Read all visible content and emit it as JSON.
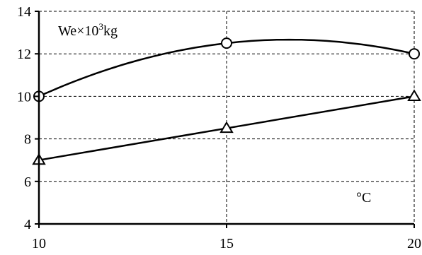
{
  "chart_data": {
    "type": "line",
    "x": [
      10,
      15,
      20
    ],
    "xlim": [
      10,
      20
    ],
    "ylim": [
      4,
      14
    ],
    "xticks": [
      "10",
      "15",
      "20"
    ],
    "yticks": [
      "4",
      "6",
      "8",
      "10",
      "12",
      "14"
    ],
    "grid": true,
    "annotations": {
      "ylabel_text": "We×10",
      "ylabel_sup": "3",
      "ylabel_unit": "kg",
      "xunit": "°C"
    },
    "series": [
      {
        "marker": "circle",
        "smooth": true,
        "values": [
          10,
          12.5,
          12
        ]
      },
      {
        "marker": "triangle",
        "smooth": false,
        "values": [
          7,
          8.5,
          10
        ]
      }
    ]
  }
}
